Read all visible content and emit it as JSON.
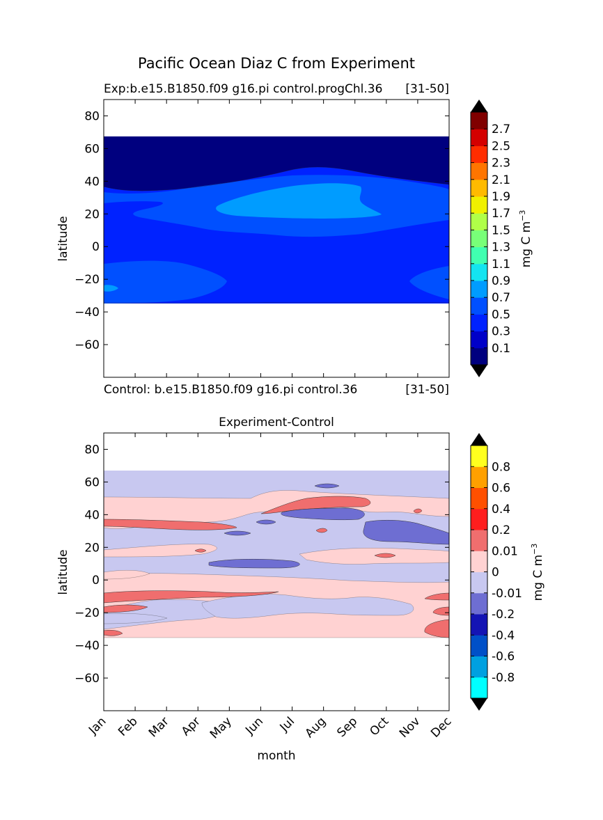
{
  "figure": {
    "title": "Pacific Ocean Diaz C from Experiment"
  },
  "chart_data": [
    {
      "type": "heatmap",
      "title": "Exp:b.e15.B1850.f09 g16.pi control.progChl.36",
      "title_right": "[31-50]",
      "bottom_caption": "Control: b.e15.B1850.f09 g16.pi control.36",
      "bottom_caption_right": "[31-50]",
      "xlabel": "",
      "ylabel": "latitude",
      "x_categories": [
        "Jan",
        "Feb",
        "Mar",
        "Apr",
        "May",
        "Jun",
        "Jul",
        "Aug",
        "Sep",
        "Oct",
        "Nov",
        "Dec"
      ],
      "show_x_tick_labels": false,
      "ylim": [
        -80,
        90
      ],
      "y_ticks": [
        80,
        60,
        40,
        20,
        0,
        -20,
        -40,
        -60
      ],
      "data_extent_lat": [
        -34,
        67
      ],
      "colorbar": {
        "label": "mg C m",
        "label_sup": "−3",
        "tick_labels": [
          "0.1",
          "0.3",
          "0.5",
          "0.7",
          "0.9",
          "1.1",
          "1.3",
          "1.5",
          "1.7",
          "1.9",
          "2.1",
          "2.3",
          "2.5",
          "2.7"
        ],
        "colors": [
          "#00007f",
          "#0000c8",
          "#0022ff",
          "#0050ff",
          "#009cff",
          "#14e4f0",
          "#40ffb0",
          "#78ff78",
          "#b0ff48",
          "#f0f000",
          "#ffba00",
          "#ff7500",
          "#ff2d00",
          "#d40000",
          "#800000"
        ],
        "extend": "both"
      },
      "regions": [
        {
          "level": "0.1",
          "description": "high latitudes 35N-67N"
        },
        {
          "level": "0.3",
          "description": "tropics and subtropics background"
        },
        {
          "level": "0.5",
          "description": "north subtropics band 10N-35N"
        },
        {
          "level": "0.7",
          "description": "core Jun-Sep 18N-38N"
        },
        {
          "level": "0.5",
          "description": "southern subtropics -10S to -34S"
        }
      ]
    },
    {
      "type": "heatmap",
      "title": "Experiment-Control",
      "xlabel": "month",
      "ylabel": "latitude",
      "x_categories": [
        "Jan",
        "Feb",
        "Mar",
        "Apr",
        "May",
        "Jun",
        "Jul",
        "Aug",
        "Sep",
        "Oct",
        "Nov",
        "Dec"
      ],
      "ylim": [
        -80,
        90
      ],
      "y_ticks": [
        80,
        60,
        40,
        20,
        0,
        -20,
        -40,
        -60
      ],
      "data_extent_lat": [
        -34,
        67
      ],
      "colorbar": {
        "label": "mg C m",
        "label_sup": "−3",
        "tick_labels": [
          "-0.8",
          "-0.6",
          "-0.4",
          "-0.2",
          "-0.01",
          "0",
          "0.01",
          "0.2",
          "0.4",
          "0.6",
          "0.8"
        ],
        "colors": [
          "#00ffff",
          "#00a0e0",
          "#0050c8",
          "#1414b4",
          "#6e6ed2",
          "#c8c8f0",
          "#ffd2d2",
          "#f06e6e",
          "#ff1e1e",
          "#ff5000",
          "#ffa000",
          "#ffff1e"
        ],
        "extend": "both"
      }
    }
  ]
}
